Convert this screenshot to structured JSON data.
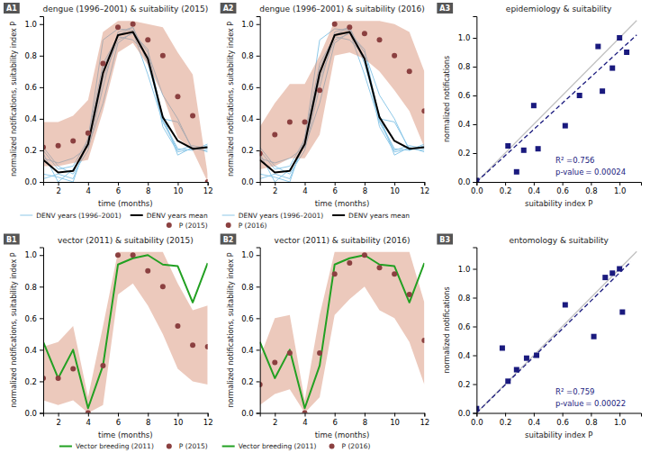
{
  "chart_data": [
    {
      "type": "line",
      "panel_label": "A1",
      "title": "dengue (1996–2001) & suitability (2015)",
      "x_label": "time (months)",
      "y_label": "normalized notifications, suitability index P",
      "x": [
        1,
        2,
        3,
        4,
        5,
        6,
        7,
        8,
        9,
        10,
        11,
        12
      ],
      "xlim": [
        1,
        12
      ],
      "ylim": [
        0.0,
        1.05
      ],
      "xticks": [
        2,
        4,
        6,
        8,
        10,
        12
      ],
      "yticks": [
        {
          "value": 0.0,
          "label": "0.0"
        },
        0.2,
        0.4,
        0.6,
        0.8,
        {
          "value": 1.0,
          "label": "1.0"
        }
      ],
      "grid": false,
      "legend": "lower right",
      "series": [
        {
          "name": "DENV years (1996–2001)",
          "type": "line",
          "color": "#8DC8E8",
          "values": [
            0.22,
            0.1,
            0.05,
            0.2,
            0.6,
            0.95,
            0.98,
            0.78,
            0.4,
            0.38,
            0.21,
            0.22
          ]
        },
        {
          "type": "line",
          "color": "#8DC8E8",
          "values": [
            0.2,
            0.08,
            0.1,
            0.27,
            0.9,
            0.97,
            0.96,
            0.82,
            0.55,
            0.4,
            0.2,
            0.24
          ]
        },
        {
          "type": "line",
          "color": "#8DC8E8",
          "values": [
            0.05,
            0.03,
            0.0,
            0.28,
            0.75,
            0.92,
            0.9,
            0.8,
            0.35,
            0.19,
            0.21,
            0.2
          ]
        },
        {
          "type": "line",
          "color": "#8DC8E8",
          "values": [
            0.15,
            0.12,
            0.15,
            0.22,
            0.5,
            0.88,
            0.95,
            0.68,
            0.38,
            0.2,
            0.23,
            0.21
          ]
        },
        {
          "type": "line",
          "color": "#8DC8E8",
          "values": [
            0.02,
            0.05,
            0.02,
            0.25,
            0.72,
            0.93,
            0.98,
            0.75,
            0.42,
            0.17,
            0.22,
            0.19
          ]
        },
        {
          "type": "line",
          "color": "#8DC8E8",
          "values": [
            0.18,
            0.0,
            0.08,
            0.23,
            0.65,
            0.9,
            0.94,
            0.84,
            0.39,
            0.21,
            0.2,
            0.23
          ]
        },
        {
          "type": "area",
          "color": "#D4876A",
          "lower": [
            0.1,
            0.1,
            0.12,
            0.14,
            0.45,
            0.82,
            0.88,
            0.74,
            0.55,
            0.28,
            0.2,
            0.0
          ],
          "upper": [
            0.38,
            0.38,
            0.42,
            0.52,
            0.95,
            1.02,
            1.02,
            1.0,
            0.98,
            0.82,
            0.68,
            0.05
          ]
        },
        {
          "name": "DENV years mean",
          "type": "line",
          "color": "#000000",
          "values": [
            0.14,
            0.06,
            0.07,
            0.24,
            0.69,
            0.93,
            0.95,
            0.78,
            0.41,
            0.26,
            0.21,
            0.22
          ]
        },
        {
          "name": "P (2015)",
          "type": "scatter",
          "marker": "circle",
          "color": "#8B4040",
          "values": [
            0.22,
            0.23,
            0.26,
            0.31,
            0.75,
            0.98,
            1.0,
            0.9,
            0.8,
            0.54,
            0.42,
            0.0
          ]
        }
      ]
    },
    {
      "type": "line",
      "panel_label": "A2",
      "title": "dengue (1996–2001) & suitability (2016)",
      "x_label": "time (months)",
      "y_label": "normalized notifications, suitability index P",
      "x": [
        1,
        2,
        3,
        4,
        5,
        6,
        7,
        8,
        9,
        10,
        11,
        12
      ],
      "xlim": [
        1,
        12
      ],
      "ylim": [
        0.0,
        1.05
      ],
      "xticks": [
        2,
        4,
        6,
        8,
        10,
        12
      ],
      "yticks": [
        {
          "value": 0.0,
          "label": "0.0"
        },
        0.2,
        0.4,
        0.6,
        0.8,
        {
          "value": 1.0,
          "label": "1.0"
        }
      ],
      "grid": false,
      "legend": "lower left",
      "series": [
        {
          "name": "DENV years (1996–2001)",
          "type": "line",
          "color": "#8DC8E8",
          "values": [
            0.22,
            0.1,
            0.05,
            0.2,
            0.6,
            0.95,
            0.98,
            0.78,
            0.4,
            0.38,
            0.21,
            0.22
          ]
        },
        {
          "type": "line",
          "color": "#8DC8E8",
          "values": [
            0.2,
            0.08,
            0.1,
            0.27,
            0.9,
            0.97,
            0.96,
            0.82,
            0.55,
            0.4,
            0.2,
            0.24
          ]
        },
        {
          "type": "line",
          "color": "#8DC8E8",
          "values": [
            0.05,
            0.03,
            0.0,
            0.28,
            0.75,
            0.92,
            0.9,
            0.8,
            0.35,
            0.19,
            0.21,
            0.2
          ]
        },
        {
          "type": "line",
          "color": "#8DC8E8",
          "values": [
            0.15,
            0.12,
            0.15,
            0.22,
            0.5,
            0.88,
            0.95,
            0.68,
            0.38,
            0.2,
            0.23,
            0.21
          ]
        },
        {
          "type": "line",
          "color": "#8DC8E8",
          "values": [
            0.02,
            0.05,
            0.02,
            0.25,
            0.72,
            0.93,
            0.98,
            0.75,
            0.42,
            0.17,
            0.22,
            0.19
          ]
        },
        {
          "type": "line",
          "color": "#8DC8E8",
          "values": [
            0.18,
            0.0,
            0.08,
            0.23,
            0.65,
            0.9,
            0.94,
            0.84,
            0.39,
            0.21,
            0.2,
            0.23
          ]
        },
        {
          "type": "area",
          "color": "#D4876A",
          "lower": [
            0.08,
            0.1,
            0.15,
            0.15,
            0.3,
            0.8,
            0.82,
            0.78,
            0.7,
            0.58,
            0.45,
            0.22
          ],
          "upper": [
            0.35,
            0.5,
            0.62,
            0.62,
            0.8,
            1.02,
            1.02,
            1.02,
            1.02,
            1.0,
            0.95,
            0.7
          ]
        },
        {
          "name": "DENV years mean",
          "type": "line",
          "color": "#000000",
          "values": [
            0.14,
            0.06,
            0.07,
            0.24,
            0.69,
            0.93,
            0.95,
            0.78,
            0.41,
            0.26,
            0.21,
            0.22
          ]
        },
        {
          "name": "P (2016)",
          "type": "scatter",
          "marker": "circle",
          "color": "#8B4040",
          "values": [
            0.18,
            0.3,
            0.38,
            0.38,
            0.58,
            1.0,
            0.98,
            0.94,
            0.9,
            0.8,
            0.7,
            0.45
          ]
        }
      ]
    },
    {
      "type": "scatter",
      "panel_label": "A3",
      "title": "epidemiology & suitability",
      "x_label": "suitability index P",
      "y_label": "normalized notifications",
      "xlim": [
        0.0,
        1.15
      ],
      "ylim": [
        0.0,
        1.15
      ],
      "xticks": [
        {
          "value": 0.0,
          "label": "0.0"
        },
        0.2,
        0.4,
        0.6,
        0.8,
        {
          "value": 1.0,
          "label": "1.0"
        }
      ],
      "yticks": [
        {
          "value": 0.0,
          "label": "0.0"
        },
        0.2,
        0.4,
        0.6,
        0.8,
        {
          "value": 1.0,
          "label": "1.0"
        }
      ],
      "grid": false,
      "series": [
        {
          "type": "line",
          "color": "#C0C0C0",
          "line_style": "solid",
          "x": [
            0.0,
            1.12
          ],
          "values": [
            0.0,
            1.12
          ]
        },
        {
          "type": "line",
          "color": "#1A1A7E",
          "line_style": "dashed",
          "x": [
            0.0,
            1.12
          ],
          "values": [
            0.0,
            1.02
          ]
        },
        {
          "type": "scatter",
          "marker": "square",
          "color": "#1A1A7E",
          "x": [
            0.0,
            0.22,
            0.28,
            0.33,
            0.4,
            0.43,
            0.62,
            0.72,
            0.85,
            0.88,
            0.95,
            1.0,
            1.05
          ],
          "values": [
            0.01,
            0.25,
            0.07,
            0.22,
            0.53,
            0.23,
            0.39,
            0.6,
            0.94,
            0.63,
            0.79,
            1.0,
            0.9
          ]
        }
      ],
      "annotations": [
        "R² =0.756",
        "p-value = 0.00024"
      ]
    },
    {
      "type": "line",
      "panel_label": "B1",
      "title": "vector (2011) & suitability (2015)",
      "x_label": "time (months)",
      "y_label": "normalized notifications, suitability index P",
      "x": [
        1,
        2,
        3,
        4,
        5,
        6,
        7,
        8,
        9,
        10,
        11,
        12
      ],
      "xlim": [
        1,
        12
      ],
      "ylim": [
        0.0,
        1.05
      ],
      "xticks": [
        2,
        4,
        6,
        8,
        10,
        12
      ],
      "yticks": [
        {
          "value": 0.0,
          "label": "0.0"
        },
        0.2,
        0.4,
        0.6,
        0.8,
        {
          "value": 1.0,
          "label": "1.0"
        }
      ],
      "grid": false,
      "legend": "lower right",
      "series": [
        {
          "type": "area",
          "color": "#D4876A",
          "lower": [
            0.08,
            0.05,
            0.08,
            0.0,
            0.05,
            0.75,
            0.82,
            0.68,
            0.5,
            0.28,
            0.2,
            0.18
          ],
          "upper": [
            0.42,
            0.45,
            0.55,
            0.1,
            0.55,
            1.02,
            1.02,
            1.02,
            1.02,
            0.82,
            0.65,
            0.68
          ]
        },
        {
          "name": "Vector breeding (2011)",
          "type": "line",
          "color": "#22A022",
          "values": [
            0.45,
            0.22,
            0.4,
            0.03,
            0.3,
            0.94,
            0.98,
            1.0,
            0.94,
            0.93,
            0.7,
            0.95
          ]
        },
        {
          "name": "P (2015)",
          "type": "scatter",
          "marker": "circle",
          "color": "#8B4040",
          "values": [
            0.22,
            0.22,
            0.28,
            0.0,
            0.3,
            1.0,
            1.0,
            0.9,
            0.8,
            0.55,
            0.43,
            0.42
          ]
        }
      ]
    },
    {
      "type": "line",
      "panel_label": "B2",
      "title": "vector (2011) & suitability (2016)",
      "x_label": "time (months)",
      "y_label": "normalized notifications, suitability index P",
      "x": [
        1,
        2,
        3,
        4,
        5,
        6,
        7,
        8,
        9,
        10,
        11,
        12
      ],
      "xlim": [
        1,
        12
      ],
      "ylim": [
        0.0,
        1.05
      ],
      "xticks": [
        2,
        4,
        6,
        8,
        10,
        12
      ],
      "yticks": [
        {
          "value": 0.0,
          "label": "0.0"
        },
        0.2,
        0.4,
        0.6,
        0.8,
        {
          "value": 1.0,
          "label": "1.0"
        }
      ],
      "grid": false,
      "legend": "lower left",
      "series": [
        {
          "type": "area",
          "color": "#D4876A",
          "lower": [
            0.05,
            0.12,
            0.15,
            0.0,
            0.1,
            0.62,
            0.72,
            0.8,
            0.65,
            0.6,
            0.45,
            0.18
          ],
          "upper": [
            0.35,
            0.6,
            0.62,
            0.08,
            0.62,
            1.02,
            1.02,
            1.02,
            1.02,
            1.02,
            1.02,
            0.7
          ]
        },
        {
          "name": "Vector breeding (2011)",
          "type": "line",
          "color": "#22A022",
          "values": [
            0.45,
            0.22,
            0.4,
            0.03,
            0.3,
            0.94,
            0.98,
            1.0,
            0.94,
            0.93,
            0.7,
            0.95
          ]
        },
        {
          "name": "P (2016)",
          "type": "scatter",
          "marker": "circle",
          "color": "#8B4040",
          "values": [
            0.18,
            0.32,
            0.38,
            0.0,
            0.38,
            0.88,
            0.95,
            1.0,
            0.92,
            0.88,
            0.75,
            0.46
          ]
        }
      ]
    },
    {
      "type": "scatter",
      "panel_label": "B3",
      "title": "entomology & suitability",
      "x_label": "suitability index P",
      "y_label": "normalized notifications",
      "xlim": [
        0.0,
        1.15
      ],
      "ylim": [
        0.0,
        1.15
      ],
      "xticks": [
        {
          "value": 0.0,
          "label": "0.0"
        },
        0.2,
        0.4,
        0.6,
        0.8,
        {
          "value": 1.0,
          "label": "1.0"
        }
      ],
      "yticks": [
        {
          "value": 0.0,
          "label": "0.0"
        },
        0.2,
        0.4,
        0.6,
        0.8,
        {
          "value": 1.0,
          "label": "1.0"
        }
      ],
      "grid": false,
      "series": [
        {
          "type": "line",
          "color": "#C0C0C0",
          "line_style": "solid",
          "x": [
            0.0,
            1.12
          ],
          "values": [
            0.0,
            1.12
          ]
        },
        {
          "type": "line",
          "color": "#1A1A7E",
          "line_style": "dashed",
          "x": [
            0.0,
            1.08
          ],
          "values": [
            0.0,
            1.05
          ]
        },
        {
          "type": "scatter",
          "marker": "square",
          "color": "#1A1A7E",
          "x": [
            0.0,
            0.18,
            0.22,
            0.28,
            0.35,
            0.42,
            0.62,
            0.82,
            0.9,
            0.95,
            1.0,
            1.02
          ],
          "values": [
            0.03,
            0.45,
            0.22,
            0.3,
            0.38,
            0.4,
            0.75,
            0.53,
            0.94,
            0.97,
            1.0,
            0.7
          ]
        }
      ],
      "annotations": [
        "R² =0.759",
        "p-value = 0.00022"
      ]
    }
  ]
}
